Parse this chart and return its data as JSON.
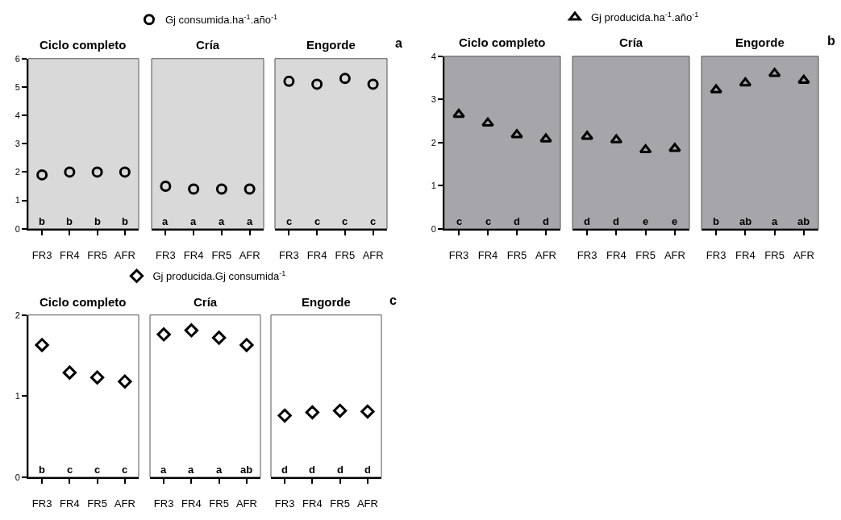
{
  "chart_data": [
    {
      "type": "scatter",
      "title": "Ciclo completo",
      "categories": [
        "FR3",
        "FR4",
        "FR5",
        "AFR"
      ],
      "series": [
        {
          "color": "#000000",
          "values": [
            1.9,
            2.0,
            2.0,
            2.0
          ]
        }
      ],
      "marker": "circle",
      "ylim": [
        0,
        6
      ],
      "yticks": [
        0,
        1,
        2,
        3,
        4,
        5,
        6
      ],
      "annotations": [
        "b",
        "b",
        "b",
        "b"
      ]
    },
    {
      "type": "scatter",
      "title": "Cría",
      "categories": [
        "FR3",
        "FR4",
        "FR5",
        "AFR"
      ],
      "series": [
        {
          "name": "Gj consumida.ha$^{-1}$.año$^{-1}$",
          "color": "#000000",
          "values": [
            1.5,
            1.4,
            1.4,
            1.4
          ]
        }
      ],
      "marker": "circle",
      "legend": "top",
      "ylim": [
        0,
        6
      ],
      "yticks": [
        0,
        1,
        2,
        3,
        4,
        5,
        6
      ],
      "tick_labels": "x",
      "annotations": [
        "a",
        "a",
        "a",
        "a"
      ]
    },
    {
      "type": "scatter",
      "title": "Engorde",
      "categories": [
        "FR3",
        "FR4",
        "FR5",
        "AFR"
      ],
      "series": [
        {
          "color": "#000000",
          "values": [
            5.2,
            5.1,
            5.3,
            5.1
          ]
        }
      ],
      "marker": "circle",
      "ylim": [
        0,
        6
      ],
      "yticks": [
        0,
        1,
        2,
        3,
        4,
        5,
        6
      ],
      "tick_labels": "x",
      "annotations": [
        "c",
        "c",
        "c",
        "c",
        "a"
      ]
    },
    {
      "type": "scatter",
      "title": "Ciclo completo",
      "categories": [
        "FR3",
        "FR4",
        "FR5",
        "AFR"
      ],
      "series": [
        {
          "color": "#000000",
          "values": [
            2.65,
            2.45,
            2.18,
            2.08
          ]
        }
      ],
      "marker": "triangle",
      "ylim": [
        0,
        4
      ],
      "yticks": [
        0,
        1,
        2,
        3,
        4
      ],
      "annotations": [
        "c",
        "c",
        "d",
        "d"
      ]
    },
    {
      "type": "scatter",
      "title": "Cría",
      "categories": [
        "FR3",
        "FR4",
        "FR5",
        "AFR"
      ],
      "series": [
        {
          "name": "Gj producida.ha$^{-1}$.año$^{-1}$",
          "color": "#000000",
          "values": [
            2.14,
            2.06,
            1.83,
            1.86
          ]
        }
      ],
      "marker": "triangle",
      "legend": "top",
      "ylim": [
        0,
        4
      ],
      "yticks": [
        0,
        1,
        2,
        3,
        4
      ],
      "tick_labels": "x",
      "annotations": [
        "d",
        "d",
        "e",
        "e"
      ]
    },
    {
      "type": "scatter",
      "title": "Engorde",
      "categories": [
        "FR3",
        "FR4",
        "FR5",
        "AFR"
      ],
      "series": [
        {
          "color": "#000000",
          "values": [
            3.22,
            3.38,
            3.6,
            3.44
          ]
        }
      ],
      "marker": "triangle",
      "ylim": [
        0,
        4
      ],
      "yticks": [
        0,
        1,
        2,
        3,
        4
      ],
      "tick_labels": "x",
      "annotations": [
        "b",
        "ab",
        "a",
        "ab",
        "b"
      ]
    },
    {
      "type": "scatter",
      "title": "Ciclo completo",
      "categories": [
        "FR3",
        "FR4",
        "FR5",
        "AFR"
      ],
      "series": [
        {
          "color": "#000000",
          "values": [
            1.63,
            1.29,
            1.23,
            1.18
          ]
        }
      ],
      "marker": "diamond",
      "ylim": [
        0,
        2
      ],
      "yticks": [
        0,
        1,
        2
      ],
      "annotations": [
        "b",
        "c",
        "c",
        "c"
      ]
    },
    {
      "type": "scatter",
      "title": "Cría",
      "categories": [
        "FR3",
        "FR4",
        "FR5",
        "AFR"
      ],
      "series": [
        {
          "name": "Gj producida.Gj consumida$^{-1}$",
          "color": "#000000",
          "values": [
            1.76,
            1.81,
            1.72,
            1.63
          ]
        }
      ],
      "marker": "diamond",
      "legend": "top",
      "ylim": [
        0,
        2
      ],
      "yticks": [
        0,
        1,
        2
      ],
      "tick_labels": "x",
      "annotations": [
        "a",
        "a",
        "a",
        "ab"
      ]
    },
    {
      "type": "scatter",
      "title": "Engorde",
      "categories": [
        "FR3",
        "FR4",
        "FR5",
        "AFR"
      ],
      "series": [
        {
          "color": "#000000",
          "values": [
            0.76,
            0.8,
            0.82,
            0.81
          ]
        }
      ],
      "marker": "diamond",
      "ylim": [
        0,
        2
      ],
      "yticks": [
        0,
        1,
        2
      ],
      "tick_labels": "x",
      "annotations": [
        "d",
        "d",
        "d",
        "d",
        "c"
      ]
    }
  ]
}
